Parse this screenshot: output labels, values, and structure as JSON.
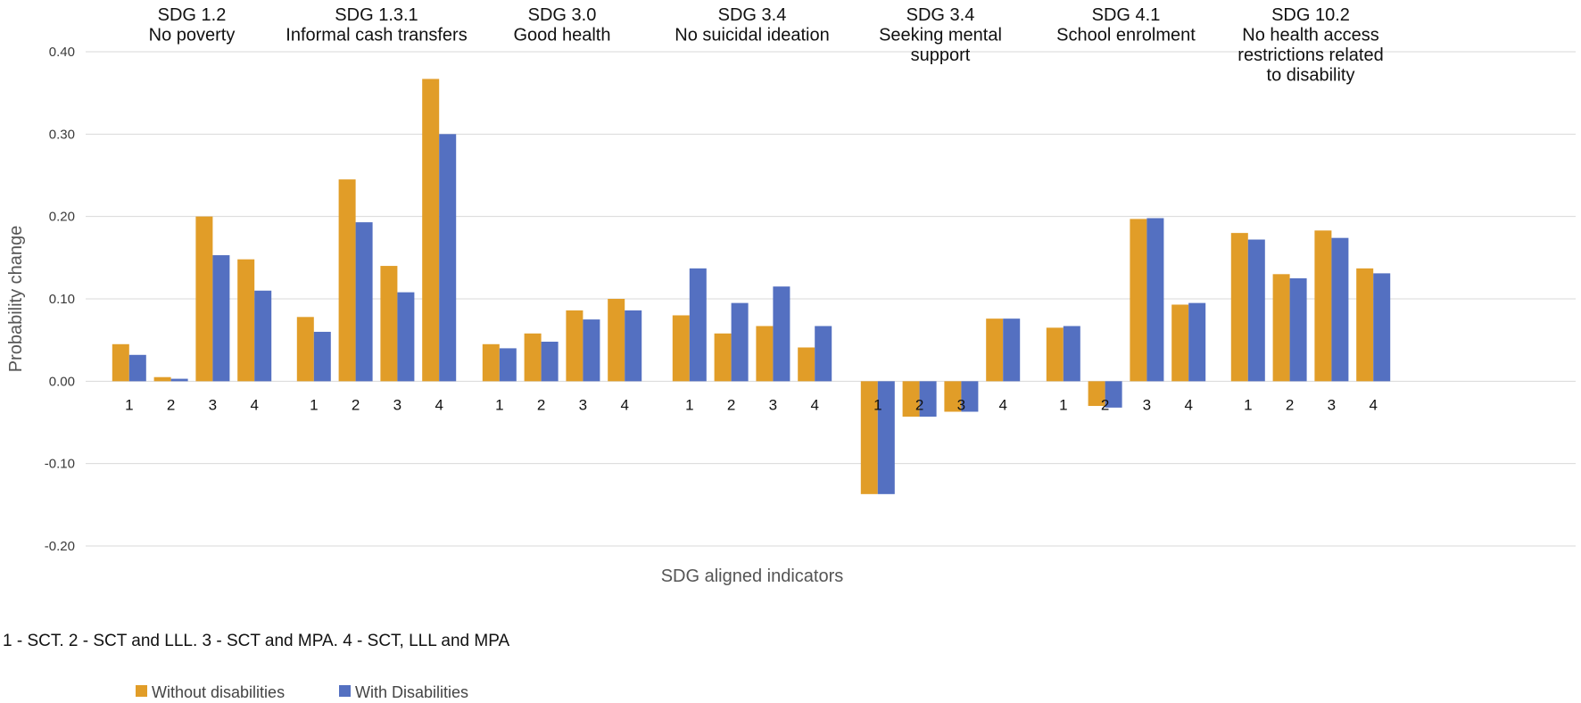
{
  "chart_data": {
    "type": "bar",
    "ylabel": "Probability change",
    "xlabel": "SDG aligned indicators",
    "ylim": [
      -0.2,
      0.4
    ],
    "yticks": [
      "0.40",
      "0.30",
      "0.20",
      "0.10",
      "0.00",
      "-0.10",
      "-0.20"
    ],
    "grid": true,
    "legend_position": "bottom-left",
    "footnote": "1 - SCT. 2 - SCT and LLL. 3 - SCT and MPA. 4 - SCT, LLL and MPA",
    "categories": [
      "1",
      "2",
      "3",
      "4"
    ],
    "series": [
      {
        "name": "Without disabilities",
        "color": "#E19D28"
      },
      {
        "name": "With Disabilities",
        "color": "#5470C1"
      }
    ],
    "groups": [
      {
        "title": [
          "SDG 1.2",
          "No poverty"
        ],
        "values": [
          [
            0.045,
            0.005,
            0.2,
            0.148
          ],
          [
            0.032,
            0.003,
            0.153,
            0.11
          ]
        ]
      },
      {
        "title": [
          "SDG 1.3.1",
          "Informal  cash transfers"
        ],
        "values": [
          [
            0.078,
            0.245,
            0.14,
            0.367
          ],
          [
            0.06,
            0.193,
            0.108,
            0.3
          ]
        ]
      },
      {
        "title": [
          "SDG 3.0",
          "Good health"
        ],
        "values": [
          [
            0.045,
            0.058,
            0.086,
            0.1
          ],
          [
            0.04,
            0.048,
            0.075,
            0.086
          ]
        ]
      },
      {
        "title": [
          "SDG 3.4",
          "No suicidal ideation"
        ],
        "values": [
          [
            0.08,
            0.058,
            0.067,
            0.041
          ],
          [
            0.137,
            0.095,
            0.115,
            0.067
          ]
        ]
      },
      {
        "title": [
          "SDG 3.4",
          "Seeking mental",
          "support"
        ],
        "values": [
          [
            -0.137,
            -0.043,
            -0.037,
            0.076
          ],
          [
            -0.137,
            -0.043,
            -0.037,
            0.076
          ]
        ]
      },
      {
        "title": [
          "SDG 4.1",
          "School enrolment"
        ],
        "values": [
          [
            0.065,
            -0.03,
            0.197,
            0.093
          ],
          [
            0.067,
            -0.032,
            0.198,
            0.095
          ]
        ]
      },
      {
        "title": [
          "SDG 10.2",
          "No health access",
          "restrictions related",
          "to disability"
        ],
        "values": [
          [
            0.18,
            0.13,
            0.183,
            0.137
          ],
          [
            0.172,
            0.125,
            0.174,
            0.131
          ]
        ]
      }
    ]
  }
}
